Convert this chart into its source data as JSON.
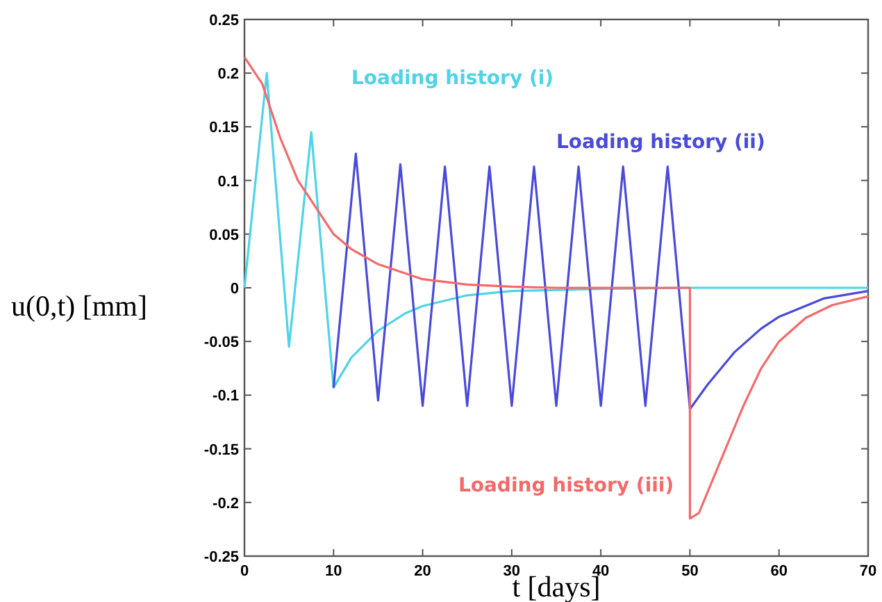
{
  "chart_data": {
    "type": "line",
    "xlabel": "t [days]",
    "ylabel": "u(0,t) [mm]",
    "xlim": [
      0,
      70
    ],
    "xticks": [
      0,
      10,
      20,
      30,
      40,
      50,
      60,
      70
    ],
    "ylim": [
      -0.25,
      0.25
    ],
    "yticks": [
      -0.25,
      -0.2,
      -0.15,
      -0.1,
      -0.05,
      0,
      0.05,
      0.1,
      0.15,
      0.2,
      0.25
    ],
    "grid": false,
    "series": [
      {
        "name": "Loading history (i)",
        "color": "#4fd3e6",
        "x": [
          0,
          2.5,
          5,
          7.5,
          10,
          12,
          15,
          18,
          20,
          25,
          30,
          35,
          40,
          50,
          60,
          70
        ],
        "values": [
          0,
          0.2,
          -0.055,
          0.145,
          -0.093,
          -0.065,
          -0.04,
          -0.024,
          -0.017,
          -0.007,
          -0.003,
          -0.002,
          -0.001,
          0,
          0,
          0
        ]
      },
      {
        "name": "Loading history (ii)",
        "color": "#4a4ad8",
        "x": [
          10,
          12.5,
          15,
          17.5,
          20,
          22.5,
          25,
          27.5,
          30,
          32.5,
          35,
          37.5,
          40,
          42.5,
          45,
          47.5,
          50,
          52,
          55,
          58,
          60,
          65,
          70
        ],
        "values": [
          -0.093,
          0.125,
          -0.105,
          0.115,
          -0.11,
          0.113,
          -0.11,
          0.113,
          -0.11,
          0.113,
          -0.11,
          0.113,
          -0.11,
          0.113,
          -0.11,
          0.113,
          -0.113,
          -0.09,
          -0.06,
          -0.038,
          -0.027,
          -0.01,
          -0.003
        ]
      },
      {
        "name": "Loading history (iii)",
        "color": "#f26a6a",
        "x": [
          0,
          2,
          4,
          6,
          8,
          10,
          12,
          15,
          20,
          25,
          30,
          35,
          50,
          50,
          51,
          52,
          54,
          56,
          58,
          60,
          63,
          66,
          70
        ],
        "values": [
          0.215,
          0.19,
          0.14,
          0.1,
          0.075,
          0.05,
          0.036,
          0.022,
          0.008,
          0.003,
          0.001,
          0,
          0,
          -0.215,
          -0.21,
          -0.19,
          -0.15,
          -0.11,
          -0.075,
          -0.05,
          -0.028,
          -0.016,
          -0.008
        ]
      }
    ]
  }
}
